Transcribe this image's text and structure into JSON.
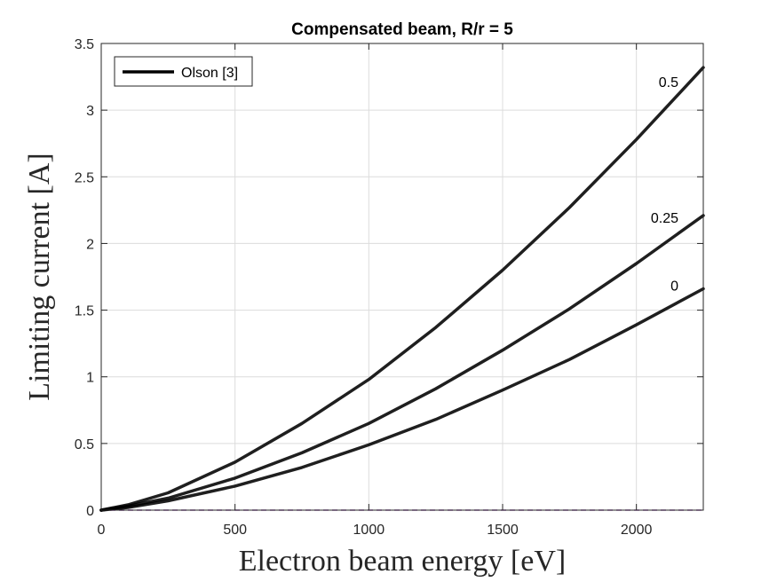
{
  "chart_data": {
    "type": "line",
    "title": "Compensated beam, R/r = 5",
    "xlabel": "Electron beam energy [eV]",
    "ylabel": "Limiting current [A]",
    "xlim": [
      0,
      2250
    ],
    "ylim": [
      0,
      3.5
    ],
    "xticks": [
      0,
      500,
      1000,
      1500,
      2000
    ],
    "xtick_labels": [
      "0",
      "500",
      "1000",
      "1500",
      "2000"
    ],
    "yticks": [
      0,
      0.5,
      1,
      1.5,
      2,
      2.5,
      3,
      3.5
    ],
    "ytick_labels": [
      "0",
      "0.5",
      "1",
      "1.5",
      "2",
      "2.5",
      "3",
      "3.5"
    ],
    "grid": true,
    "legend": {
      "placement": "top-left",
      "entries": [
        "Olson [3]"
      ]
    },
    "series": [
      {
        "label": "0.5",
        "color": "#000000",
        "x": [
          0,
          100,
          250,
          500,
          750,
          1000,
          1250,
          1500,
          1750,
          2000,
          2250
        ],
        "y": [
          0,
          0.04,
          0.13,
          0.36,
          0.65,
          0.98,
          1.37,
          1.8,
          2.27,
          2.78,
          3.32
        ]
      },
      {
        "label": "0.25",
        "color": "#000000",
        "x": [
          0,
          100,
          250,
          500,
          750,
          1000,
          1250,
          1500,
          1750,
          2000,
          2250
        ],
        "y": [
          0,
          0.03,
          0.09,
          0.24,
          0.43,
          0.65,
          0.91,
          1.2,
          1.51,
          1.85,
          2.21
        ]
      },
      {
        "label": "0",
        "color": "#000000",
        "x": [
          0,
          100,
          250,
          500,
          750,
          1000,
          1250,
          1500,
          1750,
          2000,
          2250
        ],
        "y": [
          0,
          0.02,
          0.07,
          0.18,
          0.32,
          0.49,
          0.68,
          0.9,
          1.13,
          1.39,
          1.66
        ]
      }
    ],
    "baseline": {
      "color": "#a05ab4",
      "style": "dashed",
      "y": 0
    }
  }
}
